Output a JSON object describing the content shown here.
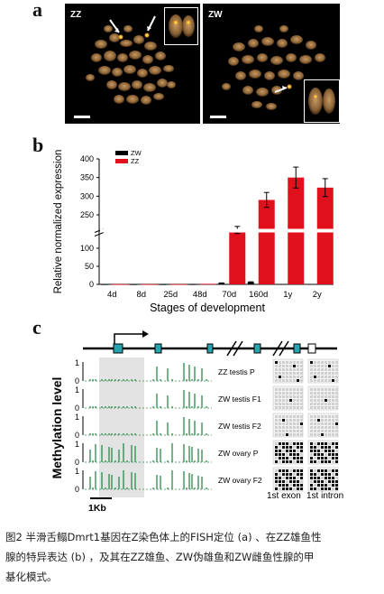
{
  "panels": {
    "a": {
      "letter": "a",
      "left_label": "ZZ",
      "right_label": "ZW"
    },
    "b": {
      "letter": "b"
    },
    "c": {
      "letter": "c",
      "ylabel": "Methylation level",
      "tracks": [
        "ZZ testis P",
        "ZW testis F1",
        "ZW testis F2",
        "ZW ovary P",
        "ZW ovary F2"
      ],
      "scale_label": "1Kb",
      "exon_label": "1st exon",
      "intron_label": "1st intron",
      "tick_labels": [
        "1",
        "0",
        "1",
        "0",
        "1",
        "0",
        "1",
        "0",
        "1",
        "0"
      ]
    }
  },
  "chart_data": {
    "type": "bar",
    "categories": [
      "4d",
      "8d",
      "25d",
      "48d",
      "70d",
      "160d",
      "1y",
      "2y"
    ],
    "series": [
      {
        "name": "ZW",
        "color": "#000000",
        "values": [
          0.3,
          0.3,
          0.3,
          0.4,
          3,
          6,
          1,
          0.8
        ],
        "errors": [
          0.1,
          0.1,
          0.1,
          0.1,
          1,
          1,
          0.3,
          0.3
        ]
      },
      {
        "name": "ZZ",
        "color": "#e0101c",
        "values": [
          0.5,
          0.5,
          0.5,
          1.5,
          182,
          290,
          350,
          323
        ],
        "errors": [
          0.1,
          0.1,
          0.1,
          0.3,
          16,
          20,
          28,
          24
        ]
      }
    ],
    "xlabel": "Stages of development",
    "ylabel": "Relative normalized expression",
    "yticks": [
      0,
      50,
      100,
      250,
      300,
      350,
      400
    ],
    "axis_break": true
  },
  "caption": {
    "lines": [
      "图2 半滑舌鳎Dmrt1基因在Z染色体上的FISH定位 (a) 、在ZZ雄鱼性",
      "腺的特异表达 (b) ，及其在ZZ雄鱼、ZW伪雄鱼和ZW雌鱼性腺的甲",
      "基化模式。"
    ]
  }
}
